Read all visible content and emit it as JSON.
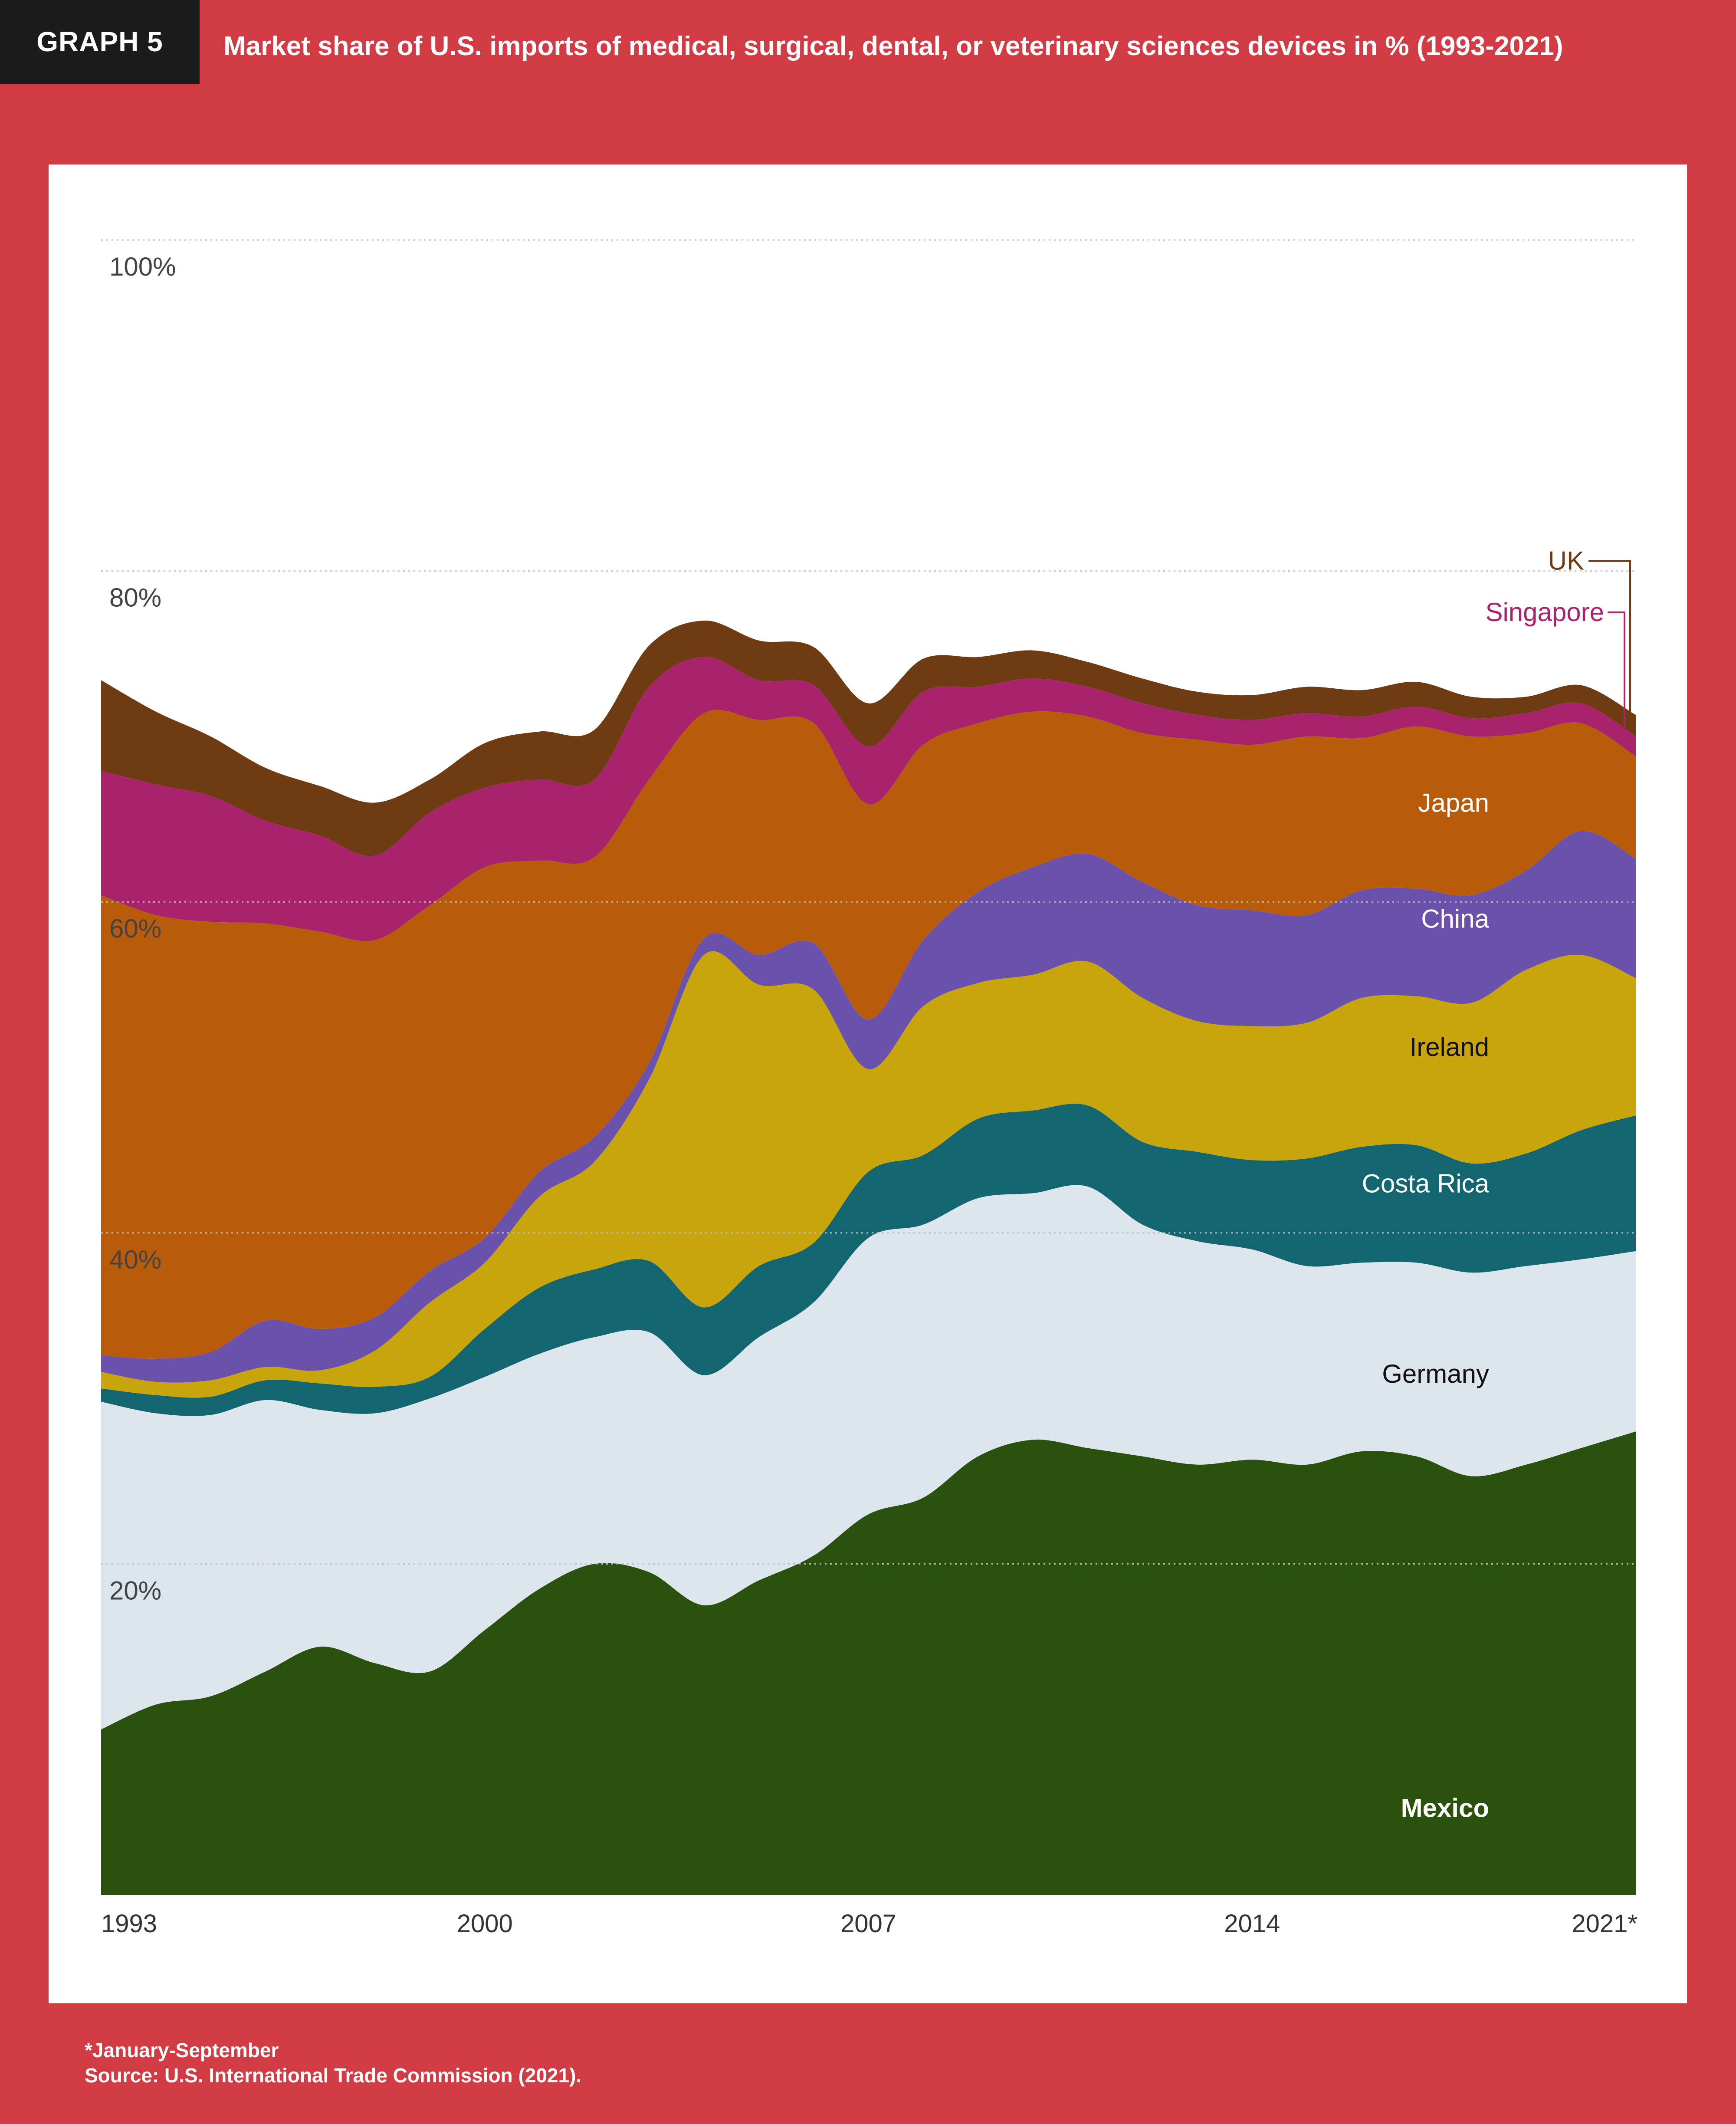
{
  "header": {
    "tag": "GRAPH 5",
    "title": "Market share of U.S. imports of medical, surgical, dental, or veterinary sciences devices in % (1993-2021)"
  },
  "footnote": {
    "note": "*January-September",
    "source": "Source: U.S. International Trade Commission (2021)."
  },
  "colors": {
    "background": "#d13c44",
    "Mexico": "#2b510f",
    "Germany": "#dde5ed",
    "Costa Rica": "#13666f",
    "Ireland": "#c8a50a",
    "China": "#6a51ab",
    "Japan": "#b85b0b",
    "Singapore": "#a9236c",
    "UK": "#6f3b12"
  },
  "chart_data": {
    "type": "area",
    "stacked": true,
    "title": "Market share of U.S. imports of medical, surgical, dental, or veterinary sciences devices in % (1993-2021)",
    "xlabel": "",
    "ylabel": "",
    "ylim": [
      0,
      100
    ],
    "yticks": [
      20,
      40,
      60,
      80,
      100
    ],
    "ytick_labels": [
      "20%",
      "40%",
      "60%",
      "80%",
      "100%"
    ],
    "xticks": [
      1993,
      2000,
      2007,
      2014,
      2021
    ],
    "xtick_labels": [
      "1993",
      "2000",
      "2007",
      "2014",
      "2021*"
    ],
    "grid": true,
    "x": [
      1993,
      1994,
      1995,
      1996,
      1997,
      1998,
      1999,
      2000,
      2001,
      2002,
      2003,
      2004,
      2005,
      2006,
      2007,
      2008,
      2009,
      2010,
      2011,
      2012,
      2013,
      2014,
      2015,
      2016,
      2017,
      2018,
      2019,
      2020,
      2021
    ],
    "series": [
      {
        "name": "Mexico",
        "label": "Mexico",
        "values": [
          10,
          11.5,
          12,
          13.5,
          15,
          14,
          13.5,
          16,
          18.5,
          20,
          19.5,
          17.5,
          19,
          20.5,
          23,
          24,
          26.5,
          27.5,
          27,
          26.5,
          26,
          26.3,
          26,
          26.8,
          26.5,
          25.3,
          26,
          27,
          28
        ]
      },
      {
        "name": "Germany",
        "label": "Germany",
        "values": [
          19.8,
          17.6,
          17,
          16.4,
          14.3,
          15.1,
          16.5,
          15.3,
          14.2,
          13.7,
          14.5,
          13.9,
          14.7,
          15.3,
          16.7,
          16.5,
          15.6,
          14.9,
          15.8,
          14,
          13.5,
          12.7,
          12,
          11.4,
          11.7,
          12.3,
          12,
          11.4,
          10.9
        ]
      },
      {
        "name": "Costa Rica",
        "label": "Costa Rica",
        "values": [
          0.8,
          1.1,
          1.1,
          1.2,
          1.6,
          1.6,
          1.3,
          2.9,
          4,
          4.1,
          4.3,
          4.1,
          4.3,
          3.6,
          4,
          4.2,
          4.8,
          5,
          4.9,
          5,
          5.4,
          5.4,
          6.5,
          7,
          7.1,
          6.6,
          6.8,
          7.8,
          8.2
        ]
      },
      {
        "name": "Ireland",
        "label": "Ireland",
        "values": [
          1,
          0.8,
          1,
          0.8,
          0.8,
          2.2,
          4.5,
          4,
          5.5,
          6.5,
          11,
          21.3,
          17,
          15.3,
          6.2,
          9,
          8.2,
          8.2,
          8.7,
          8.7,
          7.9,
          8.1,
          8.2,
          9,
          9,
          9.7,
          11.1,
          10.6,
          8.3
        ]
      },
      {
        "name": "China",
        "label": "China",
        "values": [
          1,
          1.4,
          1.7,
          2.8,
          2.5,
          2,
          1.9,
          1.5,
          1.5,
          1.5,
          1,
          1,
          1.8,
          2.8,
          3,
          4,
          5.5,
          6.5,
          6.5,
          7,
          7,
          7,
          6.5,
          6.5,
          6.5,
          6.5,
          6,
          7.5,
          7.2
        ]
      },
      {
        "name": "Japan",
        "label": "Japan",
        "values": [
          27.8,
          26.8,
          26,
          24,
          24,
          22.8,
          22.1,
          22.4,
          18.8,
          16.9,
          17.1,
          13.6,
          14.2,
          13.3,
          13,
          11.8,
          10.2,
          9.4,
          8.3,
          9,
          10,
          10,
          10.8,
          9.2,
          9.8,
          9.6,
          8.3,
          6.5,
          6.2
        ]
      },
      {
        "name": "Singapore",
        "label": "Singapore",
        "values": [
          7.5,
          7.9,
          7.6,
          6.2,
          5.8,
          5.1,
          5.6,
          4.8,
          4.9,
          4.7,
          5.6,
          3.4,
          2.4,
          2.3,
          3.5,
          3.2,
          2.2,
          2,
          1.8,
          1.8,
          1.5,
          1.5,
          1.4,
          1.3,
          1.2,
          1.1,
          1.2,
          1.2,
          1.2
        ]
      },
      {
        "name": "UK",
        "label": "UK",
        "values": [
          5.5,
          4.4,
          3.6,
          3.2,
          3,
          3.2,
          2,
          2.7,
          2.9,
          3,
          2.5,
          2.2,
          2.4,
          2.3,
          2.6,
          2,
          1.8,
          1.7,
          1.5,
          1.5,
          1.4,
          1.5,
          1.6,
          1.6,
          1.5,
          1.3,
          1,
          1.1,
          1.3
        ]
      }
    ]
  }
}
